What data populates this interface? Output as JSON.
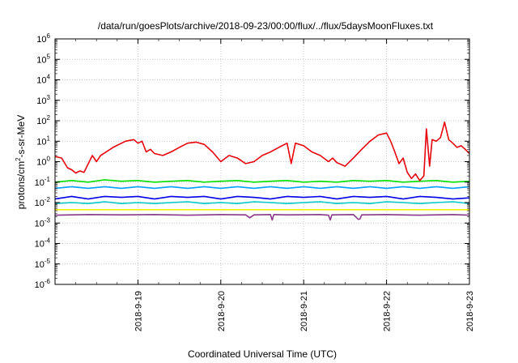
{
  "chart_data": {
    "type": "line",
    "title": "/data/run/goesPlots/archive/2018-09-23/00:00/flux/../flux/5daysMoonFluxes.txt",
    "xlabel": "Coordinated Universal Time (UTC)",
    "ylabel_prefix": "protons/cm",
    "ylabel_sup": "2",
    "ylabel_suffix": "-s-sr-MeV",
    "y_scale": "log",
    "ylim": [
      1e-06,
      1000000.0
    ],
    "xlim": [
      "2018-09-18 00:00",
      "2018-09-23 00:00"
    ],
    "grid": true,
    "legend": "none",
    "x_ticks": [
      "2018-9-19",
      "2018-9-20",
      "2018-9-21",
      "2018-9-22",
      "2018-9-23"
    ],
    "y_ticks": [
      {
        "base": "10",
        "exp": "-6"
      },
      {
        "base": "10",
        "exp": "-5"
      },
      {
        "base": "10",
        "exp": "-4"
      },
      {
        "base": "10",
        "exp": "-3"
      },
      {
        "base": "10",
        "exp": "-2"
      },
      {
        "base": "10",
        "exp": "-1"
      },
      {
        "base": "10",
        "exp": "0"
      },
      {
        "base": "10",
        "exp": "1"
      },
      {
        "base": "10",
        "exp": "2"
      },
      {
        "base": "10",
        "exp": "3"
      },
      {
        "base": "10",
        "exp": "4"
      },
      {
        "base": "10",
        "exp": "5"
      },
      {
        "base": "10",
        "exp": "6"
      }
    ],
    "series": [
      {
        "color": "#e8000b",
        "x_days": [
          0,
          0.08,
          0.15,
          0.2,
          0.25,
          0.3,
          0.35,
          0.45,
          0.5,
          0.55,
          0.7,
          0.85,
          0.95,
          1.0,
          1.05,
          1.1,
          1.15,
          1.2,
          1.3,
          1.4,
          1.5,
          1.6,
          1.7,
          1.8,
          1.9,
          2.0,
          2.1,
          2.2,
          2.3,
          2.4,
          2.5,
          2.6,
          2.7,
          2.8,
          2.85,
          2.9,
          3.0,
          3.1,
          3.2,
          3.3,
          3.35,
          3.4,
          3.5,
          3.6,
          3.7,
          3.8,
          3.9,
          4.0,
          4.05,
          4.1,
          4.15,
          4.2,
          4.25,
          4.3,
          4.35,
          4.4,
          4.45,
          4.48,
          4.52,
          4.55,
          4.6,
          4.65,
          4.7,
          4.75,
          4.8,
          4.85,
          4.9,
          4.95,
          5.0
        ],
        "values": [
          1.8,
          1.5,
          0.5,
          0.4,
          0.28,
          0.35,
          0.3,
          2.0,
          1.0,
          2.0,
          5.0,
          10,
          12,
          8,
          10,
          3.0,
          4.0,
          2.5,
          2.0,
          3.0,
          5.0,
          8.0,
          9.0,
          7.0,
          3.0,
          1.0,
          2.0,
          1.5,
          0.8,
          1.0,
          2.0,
          3.0,
          5.0,
          8.0,
          0.8,
          8.0,
          6.0,
          3.0,
          2.0,
          1.0,
          1.5,
          0.9,
          0.6,
          1.5,
          4.0,
          10,
          20,
          25,
          10,
          3.0,
          0.8,
          1.5,
          0.3,
          0.15,
          0.25,
          0.12,
          0.2,
          40,
          0.6,
          12,
          10,
          15,
          85,
          12,
          8,
          5,
          6,
          4,
          2.5
        ]
      },
      {
        "color": "#00e000",
        "x_days": [
          0,
          0.2,
          0.4,
          0.6,
          0.8,
          1.0,
          1.2,
          1.4,
          1.6,
          1.8,
          2.0,
          2.2,
          2.4,
          2.6,
          2.8,
          3.0,
          3.2,
          3.4,
          3.6,
          3.8,
          4.0,
          4.2,
          4.4,
          4.6,
          4.8,
          5.0
        ],
        "values": [
          0.1,
          0.12,
          0.1,
          0.13,
          0.11,
          0.12,
          0.1,
          0.11,
          0.12,
          0.1,
          0.11,
          0.12,
          0.1,
          0.11,
          0.12,
          0.1,
          0.11,
          0.1,
          0.12,
          0.11,
          0.12,
          0.1,
          0.11,
          0.12,
          0.1,
          0.11
        ]
      },
      {
        "color": "#00a0ff",
        "x_days": [
          0,
          0.2,
          0.4,
          0.6,
          0.8,
          1.0,
          1.2,
          1.4,
          1.6,
          1.8,
          2.0,
          2.2,
          2.4,
          2.6,
          2.8,
          3.0,
          3.2,
          3.4,
          3.6,
          3.8,
          4.0,
          4.2,
          4.4,
          4.6,
          4.8,
          5.0
        ],
        "values": [
          0.05,
          0.06,
          0.05,
          0.06,
          0.05,
          0.06,
          0.05,
          0.06,
          0.05,
          0.06,
          0.05,
          0.06,
          0.05,
          0.06,
          0.05,
          0.06,
          0.05,
          0.06,
          0.05,
          0.06,
          0.05,
          0.06,
          0.05,
          0.06,
          0.05,
          0.06
        ]
      },
      {
        "color": "#0000e8",
        "x_days": [
          0,
          0.2,
          0.4,
          0.6,
          0.8,
          1.0,
          1.2,
          1.4,
          1.6,
          1.8,
          2.0,
          2.2,
          2.4,
          2.6,
          2.8,
          3.0,
          3.2,
          3.4,
          3.6,
          3.8,
          4.0,
          4.2,
          4.4,
          4.6,
          4.8,
          5.0
        ],
        "values": [
          0.015,
          0.02,
          0.015,
          0.02,
          0.018,
          0.02,
          0.015,
          0.02,
          0.018,
          0.02,
          0.015,
          0.02,
          0.018,
          0.015,
          0.02,
          0.018,
          0.02,
          0.015,
          0.02,
          0.018,
          0.02,
          0.015,
          0.02,
          0.018,
          0.015,
          0.017
        ]
      },
      {
        "color": "#00c8c8",
        "x_days": [
          0,
          0.2,
          0.4,
          0.6,
          0.8,
          1.0,
          1.2,
          1.4,
          1.6,
          1.8,
          2.0,
          2.2,
          2.4,
          2.6,
          2.8,
          3.0,
          3.2,
          3.4,
          3.6,
          3.8,
          4.0,
          4.2,
          4.4,
          4.6,
          4.8,
          5.0
        ],
        "values": [
          0.009,
          0.01,
          0.009,
          0.011,
          0.009,
          0.01,
          0.009,
          0.01,
          0.011,
          0.009,
          0.01,
          0.009,
          0.011,
          0.01,
          0.009,
          0.01,
          0.011,
          0.009,
          0.01,
          0.009,
          0.011,
          0.01,
          0.009,
          0.01,
          0.011,
          0.009
        ]
      },
      {
        "color": "#f0f000",
        "x_days": [
          0,
          1.0,
          2.0,
          3.0,
          4.0,
          5.0
        ],
        "values": [
          0.0045,
          0.0045,
          0.0045,
          0.0045,
          0.0045,
          0.0045
        ]
      },
      {
        "color": "#8b3a8b",
        "x_days": [
          0,
          0.4,
          0.8,
          1.2,
          1.6,
          2.0,
          2.3,
          2.35,
          2.4,
          2.6,
          2.62,
          2.64,
          2.8,
          3.2,
          3.3,
          3.32,
          3.34,
          3.6,
          3.66,
          3.68,
          3.7,
          4.0,
          4.4,
          4.8,
          5.0
        ],
        "values": [
          0.0024,
          0.0026,
          0.0025,
          0.0026,
          0.0024,
          0.0026,
          0.0025,
          0.0018,
          0.0025,
          0.0026,
          0.0014,
          0.0026,
          0.0025,
          0.0026,
          0.0024,
          0.0014,
          0.0025,
          0.0026,
          0.0015,
          0.0016,
          0.0025,
          0.0026,
          0.0024,
          0.0026,
          0.0024
        ]
      }
    ]
  }
}
